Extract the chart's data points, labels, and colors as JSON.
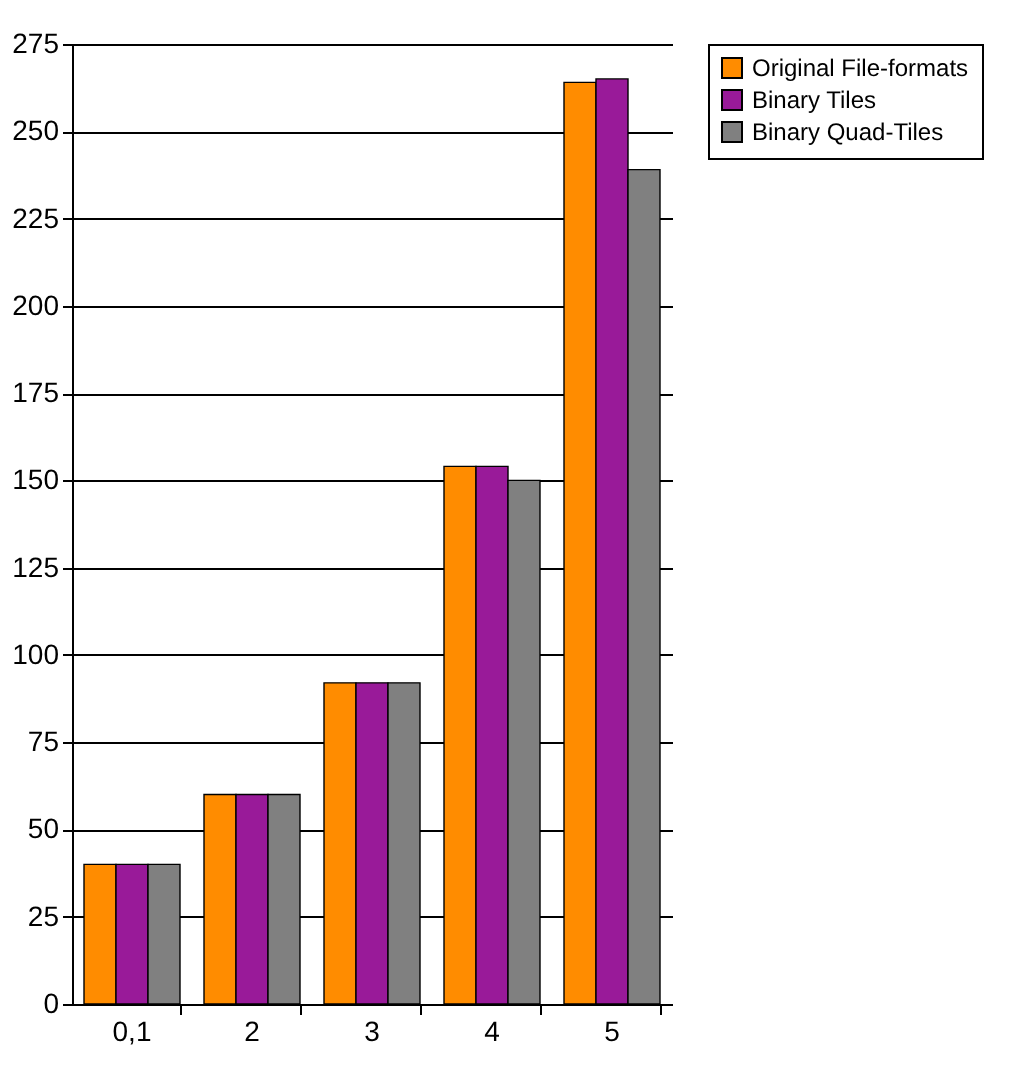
{
  "chart_data": {
    "type": "bar",
    "categories": [
      "0,1",
      "2",
      "3",
      "4",
      "5"
    ],
    "series": [
      {
        "name": "Original File-formats",
        "color": "#ff8c00",
        "values": [
          40,
          60,
          92,
          154,
          264
        ]
      },
      {
        "name": "Binary Tiles",
        "color": "#991a99",
        "values": [
          40,
          60,
          92,
          154,
          265
        ]
      },
      {
        "name": "Binary Quad-Tiles",
        "color": "#808080",
        "values": [
          40,
          60,
          92,
          150,
          239
        ]
      }
    ],
    "ylim": [
      0,
      275
    ],
    "yticks": [
      0,
      25,
      50,
      75,
      100,
      125,
      150,
      175,
      200,
      225,
      250,
      275
    ],
    "grid": "y",
    "legend": "right"
  }
}
